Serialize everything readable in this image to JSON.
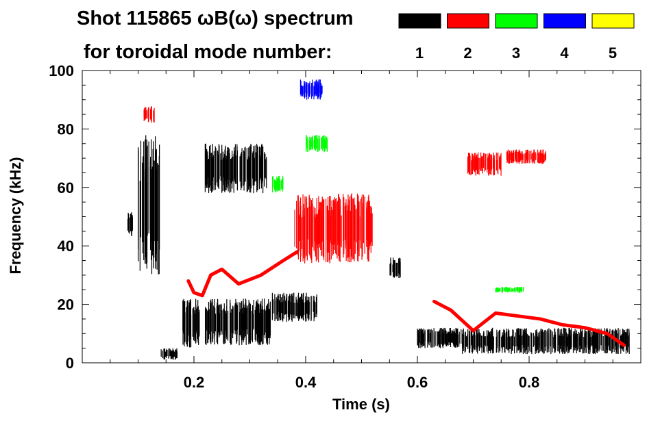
{
  "chart_data": {
    "type": "spectrogram",
    "title": "Shot 115865 ωB(ω) spectrum",
    "subtitle": "for toroidal mode number:",
    "xlabel": "Time (s)",
    "ylabel": "Frequency (kHz)",
    "xlim": [
      0.0,
      1.0
    ],
    "ylim": [
      0,
      100
    ],
    "x_ticks": [
      0.2,
      0.4,
      0.6,
      0.8
    ],
    "x_tick_labels": [
      "0.2",
      "0.4",
      "0.6",
      "0.8"
    ],
    "y_ticks": [
      0,
      20,
      40,
      60,
      80,
      100
    ],
    "y_tick_labels": [
      "0",
      "20",
      "40",
      "60",
      "80",
      "100"
    ],
    "legend": [
      {
        "n": "1",
        "color": "#000000"
      },
      {
        "n": "2",
        "color": "#ff0000"
      },
      {
        "n": "3",
        "color": "#00ff00"
      },
      {
        "n": "4",
        "color": "#0000ff"
      },
      {
        "n": "5",
        "color": "#ffff00"
      }
    ],
    "series": [
      {
        "name": "n=1",
        "color": "#000000",
        "regions": [
          {
            "t": [
              0.08,
              0.09
            ],
            "f": [
              43,
              52
            ]
          },
          {
            "t": [
              0.1,
              0.14
            ],
            "f": [
              30,
              78
            ]
          },
          {
            "t": [
              0.14,
              0.17
            ],
            "f": [
              1,
              5
            ]
          },
          {
            "t": [
              0.18,
              0.21
            ],
            "f": [
              5,
              22
            ]
          },
          {
            "t": [
              0.22,
              0.33
            ],
            "f": [
              58,
              75
            ]
          },
          {
            "t": [
              0.22,
              0.34
            ],
            "f": [
              6,
              22
            ]
          },
          {
            "t": [
              0.34,
              0.42
            ],
            "f": [
              14,
              24
            ]
          },
          {
            "t": [
              0.55,
              0.57
            ],
            "f": [
              29,
              36
            ]
          },
          {
            "t": [
              0.6,
              0.68
            ],
            "f": [
              5,
              12
            ]
          },
          {
            "t": [
              0.68,
              0.98
            ],
            "f": [
              3,
              12
            ]
          }
        ]
      },
      {
        "name": "n=2",
        "color": "#ff0000",
        "regions": [
          {
            "t": [
              0.11,
              0.13
            ],
            "f": [
              82,
              88
            ]
          },
          {
            "t": [
              0.38,
              0.52
            ],
            "f": [
              34,
              58
            ]
          },
          {
            "t": [
              0.69,
              0.75
            ],
            "f": [
              64,
              72
            ]
          },
          {
            "t": [
              0.76,
              0.83
            ],
            "f": [
              68,
              73
            ]
          }
        ],
        "lines": [
          {
            "t": [
              0.19,
              0.2,
              0.215,
              0.23,
              0.25,
              0.28,
              0.32,
              0.36,
              0.385
            ],
            "f": [
              28,
              24,
              23,
              30,
              32,
              27,
              30,
              35,
              38
            ]
          },
          {
            "t": [
              0.63,
              0.66,
              0.7,
              0.74,
              0.78,
              0.82,
              0.86,
              0.9,
              0.94,
              0.97
            ],
            "f": [
              21,
              18,
              11,
              17,
              16,
              15,
              13,
              12,
              10,
              6
            ]
          }
        ]
      },
      {
        "name": "n=3",
        "color": "#00ff00",
        "regions": [
          {
            "t": [
              0.4,
              0.44
            ],
            "f": [
              72,
              78
            ]
          },
          {
            "t": [
              0.34,
              0.36
            ],
            "f": [
              58,
              64
            ]
          },
          {
            "t": [
              0.74,
              0.79
            ],
            "f": [
              24,
              26
            ]
          }
        ]
      },
      {
        "name": "n=4",
        "color": "#0000ff",
        "regions": [
          {
            "t": [
              0.39,
              0.43
            ],
            "f": [
              90,
              97
            ]
          }
        ]
      },
      {
        "name": "n=5",
        "color": "#ffff00",
        "regions": []
      }
    ]
  }
}
